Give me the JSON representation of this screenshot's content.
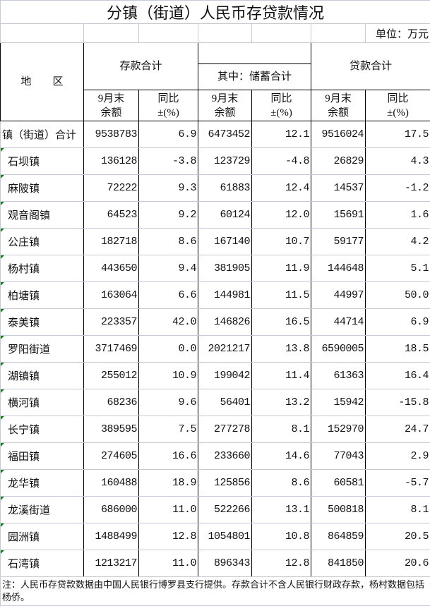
{
  "title": "分镇（街道）人民币存贷款情况",
  "unit": "单位：万元",
  "header": {
    "region": "地　　区",
    "deposit_total": "存款合计",
    "savings_total": "其中：储蓄合计",
    "loan_total": "贷款合计",
    "balance_line1": "9月末",
    "balance_line2": "余额",
    "yoy_line1": "同比",
    "yoy_line2": "±(%)"
  },
  "rows": [
    {
      "name": "镇（街道）合计",
      "dep": "9538783",
      "dep_yoy": "6.9",
      "sav": "6473452",
      "sav_yoy": "12.1",
      "loan": "9516024",
      "loan_yoy": "17.5"
    },
    {
      "name": "石坝镇",
      "dep": "136128",
      "dep_yoy": "-3.8",
      "sav": "123729",
      "sav_yoy": "-4.8",
      "loan": "26829",
      "loan_yoy": "4.3"
    },
    {
      "name": "麻陂镇",
      "dep": "72222",
      "dep_yoy": "9.3",
      "sav": "61883",
      "sav_yoy": "12.4",
      "loan": "14537",
      "loan_yoy": "-1.2"
    },
    {
      "name": "观音阁镇",
      "dep": "64523",
      "dep_yoy": "9.2",
      "sav": "60124",
      "sav_yoy": "12.0",
      "loan": "15691",
      "loan_yoy": "1.6"
    },
    {
      "name": "公庄镇",
      "dep": "182718",
      "dep_yoy": "8.6",
      "sav": "167140",
      "sav_yoy": "10.7",
      "loan": "59177",
      "loan_yoy": "4.2"
    },
    {
      "name": "杨村镇",
      "dep": "443650",
      "dep_yoy": "9.4",
      "sav": "381905",
      "sav_yoy": "11.9",
      "loan": "144648",
      "loan_yoy": "5.1"
    },
    {
      "name": "柏塘镇",
      "dep": "163064",
      "dep_yoy": "6.6",
      "sav": "144981",
      "sav_yoy": "11.5",
      "loan": "44997",
      "loan_yoy": "50.0"
    },
    {
      "name": "泰美镇",
      "dep": "223357",
      "dep_yoy": "42.0",
      "sav": "146826",
      "sav_yoy": "16.5",
      "loan": "44714",
      "loan_yoy": "6.9"
    },
    {
      "name": "罗阳街道",
      "dep": "3717469",
      "dep_yoy": "0.0",
      "sav": "2021217",
      "sav_yoy": "13.8",
      "loan": "6590005",
      "loan_yoy": "18.5"
    },
    {
      "name": "湖镇镇",
      "dep": "255012",
      "dep_yoy": "10.9",
      "sav": "199042",
      "sav_yoy": "11.4",
      "loan": "61363",
      "loan_yoy": "16.4"
    },
    {
      "name": "横河镇",
      "dep": "68236",
      "dep_yoy": "9.6",
      "sav": "56401",
      "sav_yoy": "13.2",
      "loan": "15942",
      "loan_yoy": "-15.8"
    },
    {
      "name": "长宁镇",
      "dep": "389595",
      "dep_yoy": "7.5",
      "sav": "277278",
      "sav_yoy": "8.1",
      "loan": "152970",
      "loan_yoy": "24.7"
    },
    {
      "name": "福田镇",
      "dep": "274605",
      "dep_yoy": "16.6",
      "sav": "233660",
      "sav_yoy": "14.6",
      "loan": "77043",
      "loan_yoy": "2.9"
    },
    {
      "name": "龙华镇",
      "dep": "160488",
      "dep_yoy": "18.9",
      "sav": "125856",
      "sav_yoy": "8.6",
      "loan": "60581",
      "loan_yoy": "-5.7"
    },
    {
      "name": "龙溪街道",
      "dep": "686000",
      "dep_yoy": "11.0",
      "sav": "522266",
      "sav_yoy": "13.1",
      "loan": "500818",
      "loan_yoy": "8.1"
    },
    {
      "name": "园洲镇",
      "dep": "1488499",
      "dep_yoy": "12.8",
      "sav": "1054801",
      "sav_yoy": "10.8",
      "loan": "864859",
      "loan_yoy": "20.5"
    },
    {
      "name": "石湾镇",
      "dep": "1213217",
      "dep_yoy": "11.0",
      "sav": "896343",
      "sav_yoy": "12.8",
      "loan": "841850",
      "loan_yoy": "20.6"
    }
  ],
  "footnote": "注：人民币存贷款数据由中国人民银行博罗县支行提供。存款合计不含人民银行财政存款，杨村数据包括杨侨。",
  "colors": {
    "marker": "#1a7a1a",
    "gridline": "#c3cadb",
    "border": "#000000"
  }
}
